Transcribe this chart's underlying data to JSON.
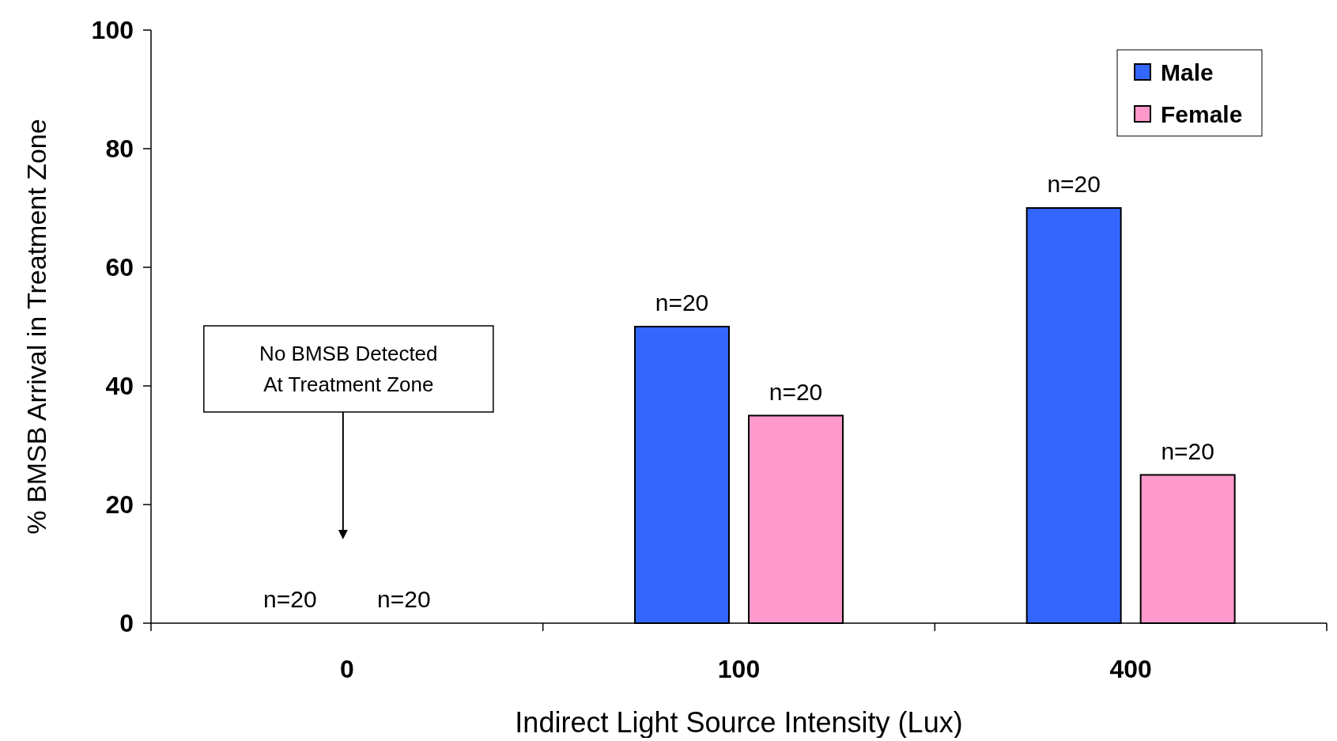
{
  "chart_data": {
    "type": "bar",
    "xlabel": "Indirect Light Source Intensity (Lux)",
    "ylabel": "% BMSB Arrival in Treatment Zone",
    "categories": [
      "0",
      "100",
      "400"
    ],
    "series": [
      {
        "name": "Male",
        "color": "#3366ff",
        "values": [
          0,
          50,
          70
        ]
      },
      {
        "name": "Female",
        "color": "#ff99cc",
        "values": [
          0,
          35,
          25
        ]
      }
    ],
    "ylim": [
      0,
      100
    ],
    "yticks": [
      0,
      20,
      40,
      60,
      80,
      100
    ],
    "grid": false,
    "legend": "top right",
    "annotations": [
      "No BMSB Detected At Treatment Zone",
      "n=20",
      "n=20",
      "n=20",
      "n=20",
      "n=20",
      "n=20"
    ]
  }
}
